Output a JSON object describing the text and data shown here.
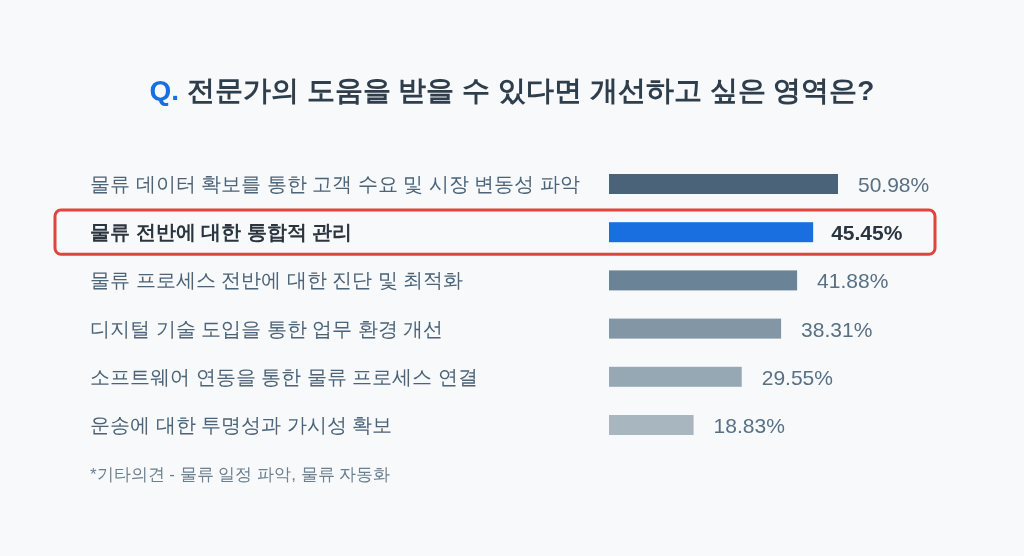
{
  "chart_data": {
    "type": "bar",
    "orientation": "horizontal",
    "title": "Q. 전문가의 도움을 받을 수 있다면 개선하고 싶은 영역은?",
    "categories": [
      "물류 데이터 확보를 통한 고객 수요 및 시장 변동성 파악",
      "물류 전반에 대한 통합적 관리",
      "물류 프로세스 전반에 대한 진단 및 최적화",
      "디지털 기술 도입을 통한 업무 환경 개선",
      "소프트웨어 연동을 통한 물류 프로세스 연결",
      "운송에 대한 투명성과 가시성 확보"
    ],
    "values": [
      50.98,
      45.45,
      41.88,
      38.31,
      29.55,
      18.83
    ],
    "value_labels": [
      "50.98%",
      "45.45%",
      "41.88%",
      "38.31%",
      "29.55%",
      "18.83%"
    ],
    "colors": [
      "#4a6378",
      "#1a6fe0",
      "#6b8396",
      "#8296a6",
      "#97a8b5",
      "#a8b6c0"
    ],
    "annotations": [
      "*기타의견 - 물류 일정 파악, 물류 자동화"
    ]
  }
}
